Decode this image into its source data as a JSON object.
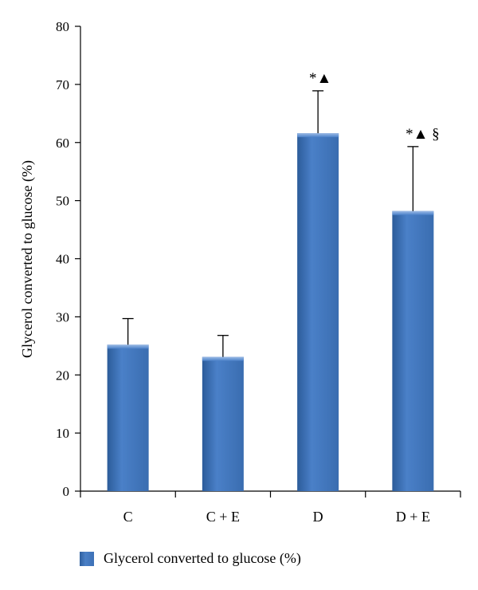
{
  "chart_data": {
    "type": "bar",
    "categories": [
      "C",
      "C + E",
      "D",
      "D + E"
    ],
    "series": [
      {
        "name": "Glycerol converted to glucose (%)",
        "values": [
          25.2,
          23.1,
          61.6,
          48.2
        ],
        "errors": [
          4.5,
          3.7,
          7.3,
          11.1
        ],
        "color": "#3d71b6"
      }
    ],
    "annotations": [
      "",
      "",
      "*▲",
      "*▲ §"
    ],
    "ylabel": "Glycerol converted to glucose (%)",
    "xlabel": "",
    "ylim": [
      0,
      80
    ],
    "yticks": [
      0,
      10,
      20,
      30,
      40,
      50,
      60,
      70,
      80
    ],
    "grid": false,
    "legend_position": "bottom-left"
  }
}
